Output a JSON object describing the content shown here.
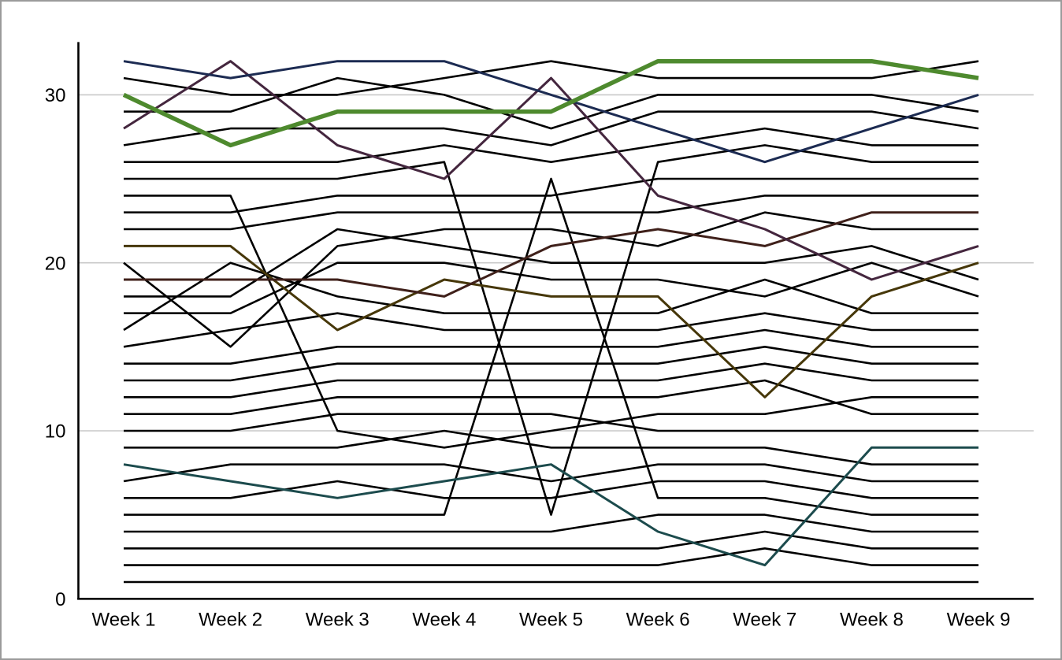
{
  "frame": {
    "background_color": "#ffffff",
    "border_color": "#9b9b9b"
  },
  "chart_data": {
    "type": "line",
    "title": "",
    "xlabel": "",
    "ylabel": "",
    "x_categories": [
      "Week 1",
      "Week 2",
      "Week 3",
      "Week 4",
      "Week 5",
      "Week 6",
      "Week 7",
      "Week 8",
      "Week 9"
    ],
    "y_ticks": [
      0,
      10,
      20,
      30
    ],
    "ylim": [
      0,
      33
    ],
    "grid": "horizontal",
    "legend": "none",
    "gridline_color": "#c9c9c9",
    "axis_color": "#000000",
    "tick_label_color": "#000000",
    "tick_font_size": 24,
    "highlight_colors": {
      "green": "#4e8a2e",
      "navy": "#1c2b52",
      "maroon": "#44263e",
      "dark_red": "#3f201a",
      "olive": "#463709",
      "teal": "#1c4b4d"
    },
    "series": [
      {
        "name": "line-01",
        "color": "#000000",
        "width": 2.6,
        "values": [
          31,
          30,
          30,
          31,
          32,
          31,
          31,
          31,
          32
        ]
      },
      {
        "name": "line-02",
        "color": "#000000",
        "width": 2.6,
        "values": [
          29,
          29,
          31,
          30,
          28,
          30,
          30,
          30,
          29
        ]
      },
      {
        "name": "line-03",
        "color": "#000000",
        "width": 2.6,
        "values": [
          27,
          28,
          28,
          28,
          27,
          29,
          29,
          29,
          28
        ]
      },
      {
        "name": "line-04",
        "color": "#000000",
        "width": 2.6,
        "values": [
          26,
          26,
          26,
          27,
          26,
          27,
          28,
          27,
          27
        ]
      },
      {
        "name": "line-05",
        "color": "#000000",
        "width": 2.6,
        "values": [
          25,
          25,
          25,
          26,
          5,
          26,
          27,
          26,
          26
        ]
      },
      {
        "name": "line-06",
        "color": "#000000",
        "width": 2.6,
        "values": [
          24,
          24,
          10,
          9,
          10,
          11,
          11,
          12,
          12
        ]
      },
      {
        "name": "line-07",
        "color": "#000000",
        "width": 2.6,
        "values": [
          23,
          23,
          24,
          24,
          24,
          25,
          25,
          25,
          25
        ]
      },
      {
        "name": "line-08",
        "color": "#000000",
        "width": 2.6,
        "values": [
          22,
          22,
          23,
          23,
          23,
          23,
          24,
          24,
          24
        ]
      },
      {
        "name": "line-09",
        "color": "#000000",
        "width": 2.6,
        "values": [
          20,
          15,
          21,
          22,
          22,
          21,
          23,
          22,
          22
        ]
      },
      {
        "name": "line-10",
        "color": "#000000",
        "width": 2.6,
        "values": [
          18,
          18,
          22,
          21,
          20,
          20,
          20,
          21,
          19
        ]
      },
      {
        "name": "line-11",
        "color": "#000000",
        "width": 2.6,
        "values": [
          17,
          17,
          20,
          20,
          19,
          19,
          18,
          20,
          18
        ]
      },
      {
        "name": "line-12",
        "color": "#000000",
        "width": 2.6,
        "values": [
          16,
          20,
          18,
          17,
          17,
          17,
          19,
          17,
          17
        ]
      },
      {
        "name": "line-13",
        "color": "#000000",
        "width": 2.6,
        "values": [
          15,
          16,
          17,
          16,
          16,
          16,
          17,
          16,
          16
        ]
      },
      {
        "name": "line-14",
        "color": "#000000",
        "width": 2.6,
        "values": [
          14,
          14,
          15,
          15,
          15,
          15,
          16,
          15,
          15
        ]
      },
      {
        "name": "line-15",
        "color": "#000000",
        "width": 2.6,
        "values": [
          13,
          13,
          14,
          14,
          14,
          14,
          15,
          14,
          14
        ]
      },
      {
        "name": "line-16",
        "color": "#000000",
        "width": 2.6,
        "values": [
          12,
          12,
          13,
          13,
          13,
          13,
          14,
          13,
          13
        ]
      },
      {
        "name": "line-17",
        "color": "#000000",
        "width": 2.6,
        "values": [
          11,
          11,
          12,
          12,
          12,
          12,
          13,
          11,
          11
        ]
      },
      {
        "name": "line-18",
        "color": "#000000",
        "width": 2.6,
        "values": [
          10,
          10,
          11,
          11,
          11,
          10,
          10,
          10,
          10
        ]
      },
      {
        "name": "line-19",
        "color": "#000000",
        "width": 2.6,
        "values": [
          9,
          9,
          9,
          10,
          9,
          9,
          9,
          8,
          8
        ]
      },
      {
        "name": "line-20",
        "color": "#000000",
        "width": 2.6,
        "values": [
          7,
          8,
          8,
          8,
          7,
          8,
          8,
          7,
          7
        ]
      },
      {
        "name": "line-21",
        "color": "#000000",
        "width": 2.6,
        "values": [
          6,
          6,
          7,
          6,
          6,
          7,
          7,
          6,
          6
        ]
      },
      {
        "name": "line-22",
        "color": "#000000",
        "width": 2.6,
        "values": [
          5,
          5,
          5,
          5,
          25,
          6,
          6,
          5,
          5
        ]
      },
      {
        "name": "line-23",
        "color": "#000000",
        "width": 2.6,
        "values": [
          4,
          4,
          4,
          4,
          4,
          5,
          5,
          4,
          4
        ]
      },
      {
        "name": "line-24",
        "color": "#000000",
        "width": 2.6,
        "values": [
          3,
          3,
          3,
          3,
          3,
          3,
          4,
          3,
          3
        ]
      },
      {
        "name": "line-25",
        "color": "#000000",
        "width": 2.6,
        "values": [
          2,
          2,
          2,
          2,
          2,
          2,
          3,
          2,
          2
        ]
      },
      {
        "name": "line-26",
        "color": "#000000",
        "width": 2.6,
        "values": [
          1,
          1,
          1,
          1,
          1,
          1,
          1,
          1,
          1
        ]
      },
      {
        "name": "highlight-teal",
        "color": "#1c4b4d",
        "width": 3.0,
        "values": [
          8,
          7,
          6,
          7,
          8,
          4,
          2,
          9,
          9
        ]
      },
      {
        "name": "highlight-olive",
        "color": "#463709",
        "width": 3.0,
        "values": [
          21,
          21,
          16,
          19,
          18,
          18,
          12,
          18,
          20
        ]
      },
      {
        "name": "highlight-dark-red",
        "color": "#3f201a",
        "width": 3.0,
        "values": [
          19,
          19,
          19,
          18,
          21,
          22,
          21,
          23,
          23
        ]
      },
      {
        "name": "highlight-maroon",
        "color": "#44263e",
        "width": 3.0,
        "values": [
          28,
          32,
          27,
          25,
          31,
          24,
          22,
          19,
          21
        ]
      },
      {
        "name": "highlight-navy",
        "color": "#1c2b52",
        "width": 3.0,
        "values": [
          32,
          31,
          32,
          32,
          30,
          28,
          26,
          28,
          30
        ]
      },
      {
        "name": "highlight-green",
        "color": "#4e8a2e",
        "width": 5.5,
        "values": [
          30,
          27,
          29,
          29,
          29,
          32,
          32,
          32,
          31
        ]
      }
    ]
  }
}
